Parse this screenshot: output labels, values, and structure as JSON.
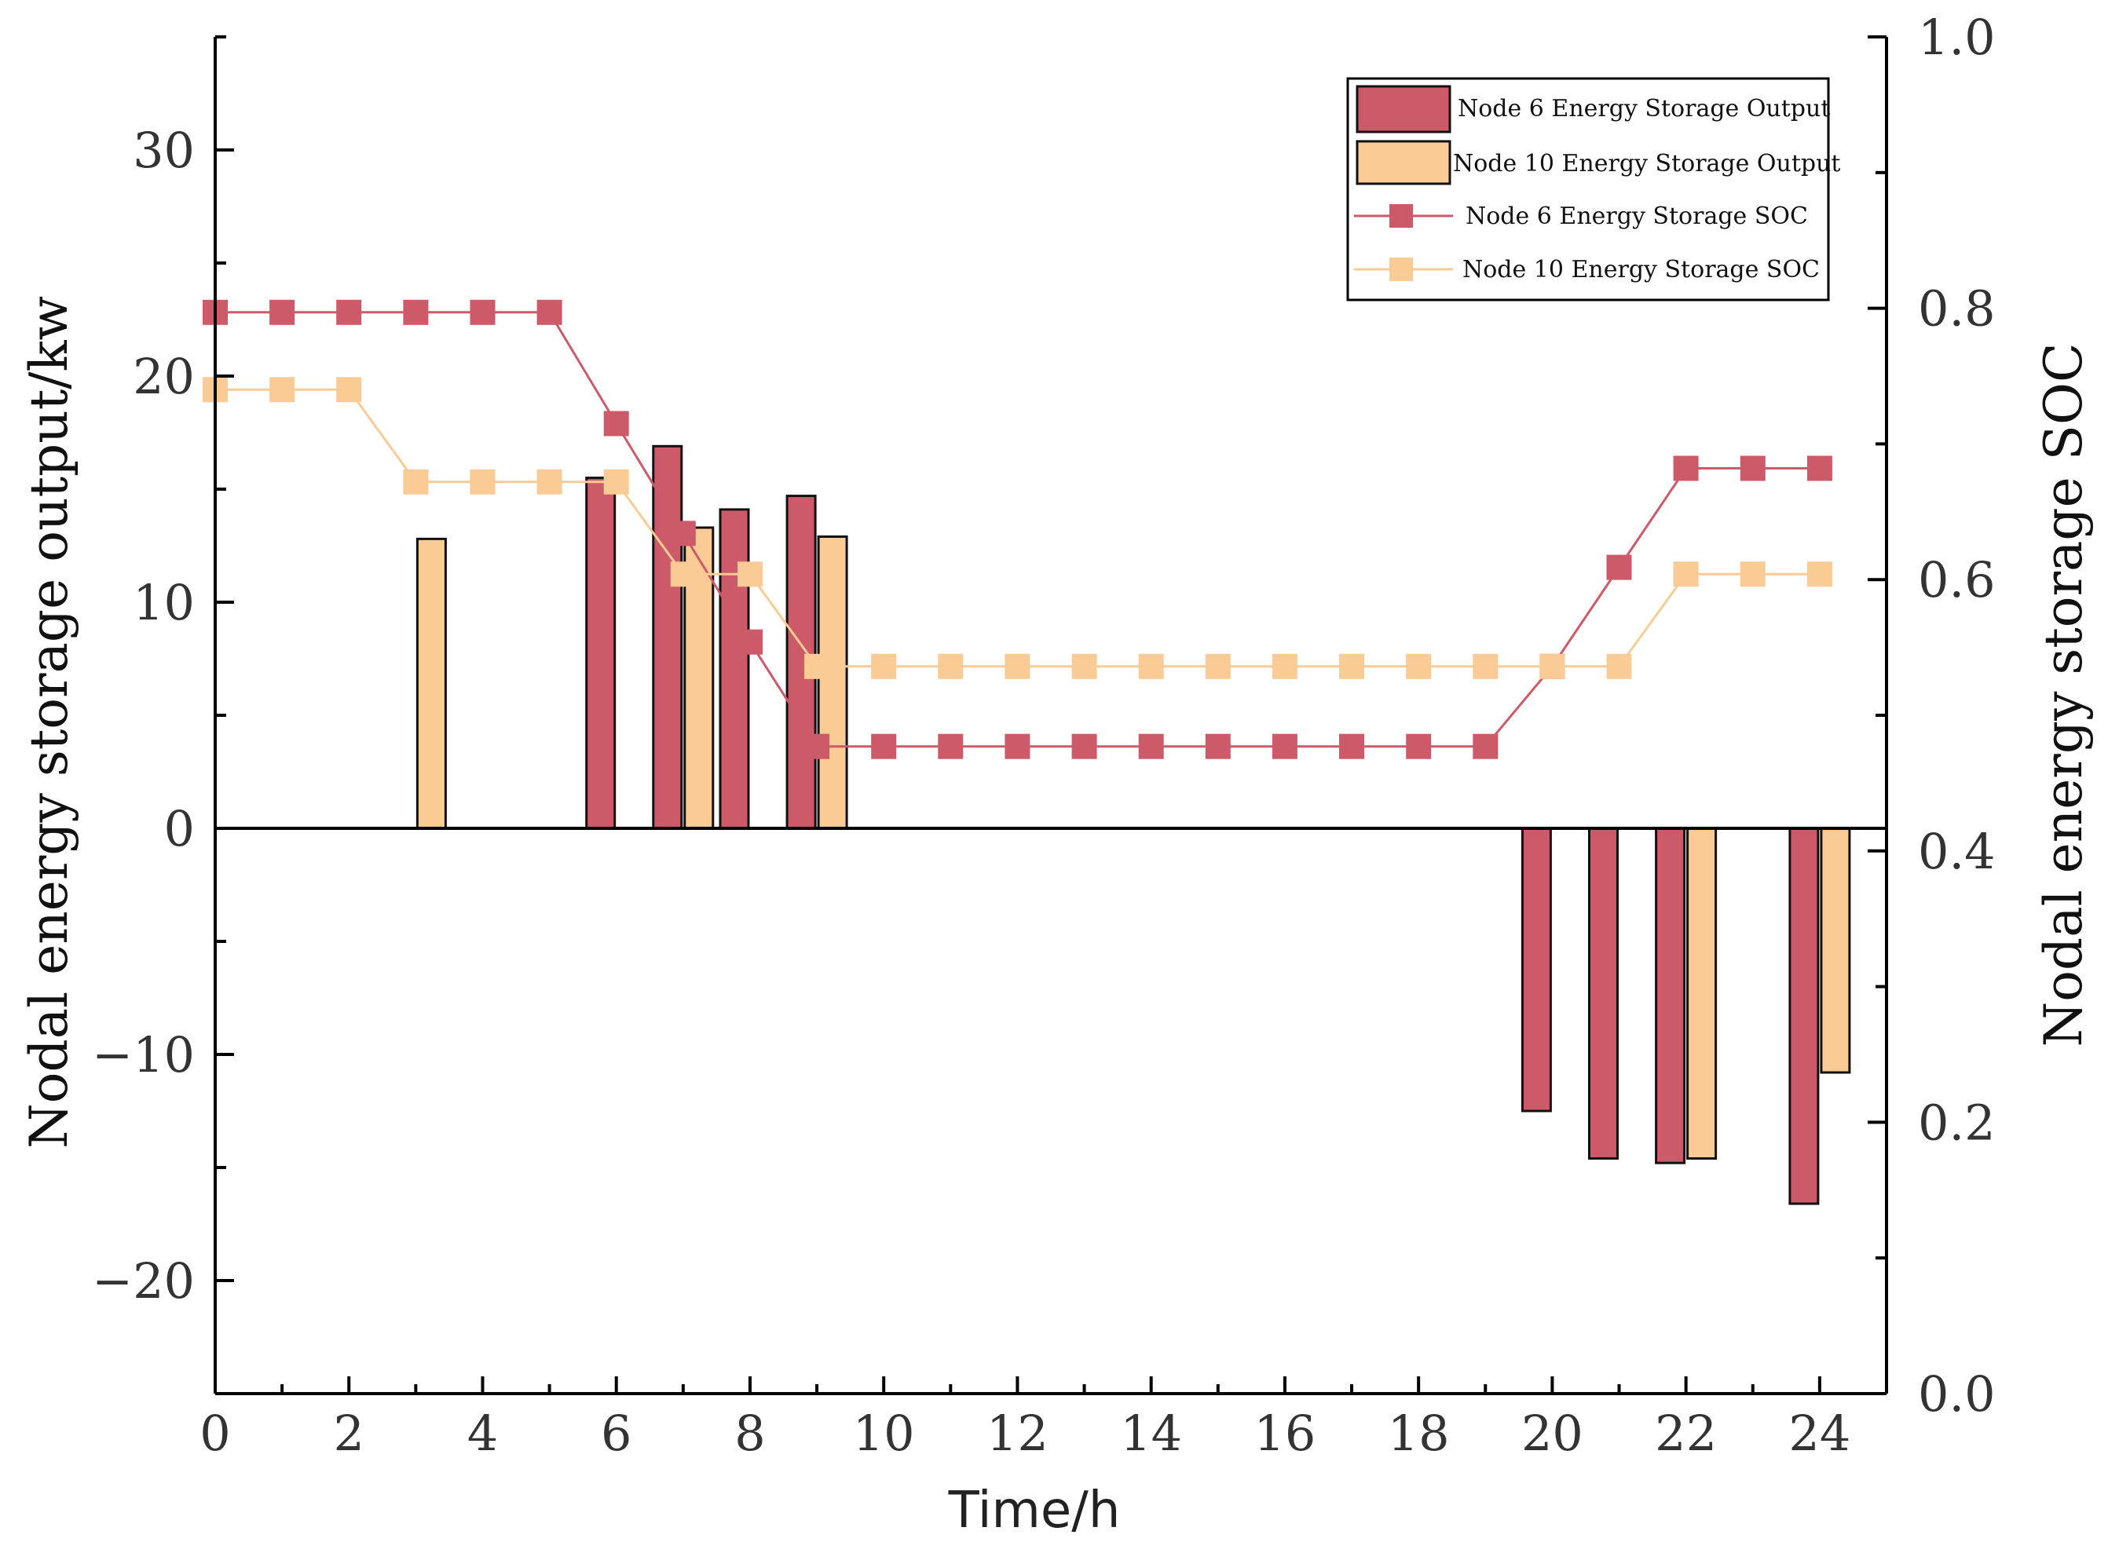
{
  "chart_data": {
    "type": "bar+line",
    "title": "",
    "xlabel": "Time/h",
    "ylabel_left": "Nodal energy storage output/kw",
    "ylabel_right": "Nodal energy storage SOC",
    "xlim": [
      0,
      25
    ],
    "ylim_left": [
      -25,
      35
    ],
    "ylim_right": [
      0.0,
      1.0
    ],
    "x_ticks": [
      0,
      2,
      4,
      6,
      8,
      10,
      12,
      14,
      16,
      18,
      20,
      22,
      24
    ],
    "x_tick_labels": [
      "0",
      "2",
      "4",
      "6",
      "8",
      "10",
      "12",
      "14",
      "16",
      "18",
      "20",
      "22",
      "24"
    ],
    "y_left_ticks": [
      -20,
      -10,
      0,
      10,
      20,
      30
    ],
    "y_left_tick_labels": [
      "−20",
      "−10",
      "0",
      "10",
      "20",
      "30"
    ],
    "y_right_ticks": [
      0.0,
      0.2,
      0.4,
      0.6,
      0.8,
      1.0
    ],
    "y_right_tick_labels": [
      "0.0",
      "0.2",
      "0.4",
      "0.6",
      "0.8",
      "1.0"
    ],
    "colors": {
      "node6": "#cd5a68",
      "node10": "#fbcb95",
      "axis": "#000000"
    },
    "bars": [
      {
        "name": "Node 6 Energy Storage Output",
        "x": [
          6,
          7,
          8,
          9,
          20,
          21,
          22,
          24
        ],
        "values": [
          15.5,
          16.9,
          14.1,
          14.7,
          -12.5,
          -14.6,
          -14.8,
          -16.6
        ]
      },
      {
        "name": "Node 10 Energy Storage Output",
        "x": [
          3,
          7,
          9,
          22,
          24
        ],
        "values": [
          12.8,
          13.3,
          12.9,
          -14.6,
          -10.8
        ]
      }
    ],
    "lines": [
      {
        "name": "Node 6 Energy Storage SOC",
        "x": [
          0,
          1,
          2,
          3,
          4,
          5,
          6,
          7,
          8,
          9,
          10,
          11,
          12,
          13,
          14,
          15,
          16,
          17,
          18,
          19,
          20,
          21,
          22,
          23,
          24
        ],
        "values": [
          0.797,
          0.797,
          0.797,
          0.797,
          0.797,
          0.797,
          0.715,
          0.634,
          0.554,
          0.477,
          0.477,
          0.477,
          0.477,
          0.477,
          0.477,
          0.477,
          0.477,
          0.477,
          0.477,
          0.477,
          0.536,
          0.609,
          0.682,
          0.682,
          0.682
        ]
      },
      {
        "name": "Node 10 Energy Storage SOC",
        "x": [
          0,
          1,
          2,
          3,
          4,
          5,
          6,
          7,
          8,
          9,
          10,
          11,
          12,
          13,
          14,
          15,
          16,
          17,
          18,
          19,
          20,
          21,
          22,
          23,
          24
        ],
        "values": [
          0.74,
          0.74,
          0.74,
          0.672,
          0.672,
          0.672,
          0.672,
          0.604,
          0.604,
          0.536,
          0.536,
          0.536,
          0.536,
          0.536,
          0.536,
          0.536,
          0.536,
          0.536,
          0.536,
          0.536,
          0.536,
          0.536,
          0.604,
          0.604,
          0.604
        ]
      }
    ],
    "legend": {
      "placement": "top-right",
      "entries": [
        "Node 6 Energy Storage Output",
        "Node 10 Energy Storage Output",
        "Node 6 Energy Storage SOC",
        "Node 10 Energy Storage SOC"
      ]
    }
  }
}
